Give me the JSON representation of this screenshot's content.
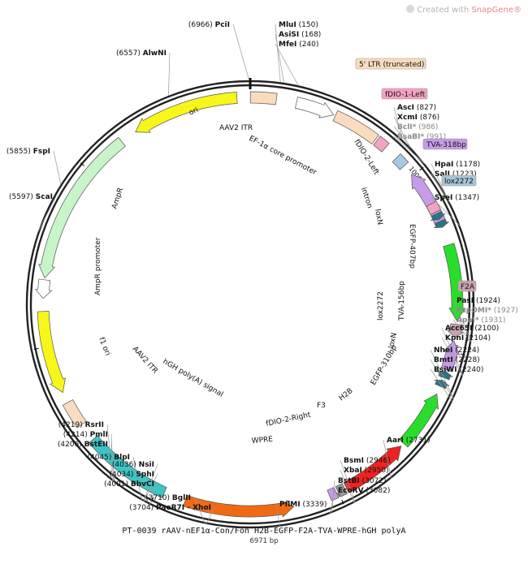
{
  "brand": {
    "prefix": "Created with ",
    "name": "SnapGene®"
  },
  "title": "PT-0039 rAAV-nEF1α-Con/Fon H2B-EGFP-F2A-TVA-WPRE-hGH polyA",
  "subtitle": "6971 bp",
  "total_bp": 6971,
  "ticks": [
    {
      "bp": 1000,
      "label": "1000"
    },
    {
      "bp": 2000,
      "label": "2000"
    },
    {
      "bp": 3000,
      "label": "3000"
    },
    {
      "bp": 4000,
      "label": "4000"
    },
    {
      "bp": 5000,
      "label": "5000"
    },
    {
      "bp": 6000,
      "label": "6000"
    }
  ],
  "features": [
    {
      "id": "aav2-itr-left",
      "label": "AAV2 ITR",
      "start": 1,
      "end": 141,
      "color": "#f9dcbd",
      "dir": 0
    },
    {
      "id": "ef1a-promoter",
      "label": "EF-1α core promoter",
      "start": 250,
      "end": 460,
      "color": "#ffffff",
      "dir": 1
    },
    {
      "id": "5-ltr",
      "label": "5' LTR (truncated)",
      "start": 470,
      "end": 720,
      "color": "#f9dcbd",
      "dir": 0
    },
    {
      "id": "fdio-1-left",
      "label": "fDIO-1-Left",
      "start": 730,
      "end": 790,
      "color": "#f5a1c2",
      "dir": 0
    },
    {
      "id": "fdio-2-left",
      "label": "fDIO-2-Left",
      "start": 870,
      "end": 930,
      "color": "#a5c9e6",
      "dir": 0
    },
    {
      "id": "tva-318bp",
      "label": "TVA-318bp",
      "start": 990,
      "end": 1310,
      "color": "#c69be8",
      "dir": -1
    },
    {
      "id": "intron",
      "label": "intron",
      "start": 1180,
      "end": 1230,
      "color": "#f5a1c2",
      "dir": 0
    },
    {
      "id": "loxn-1",
      "label": "loxN",
      "start": 1240,
      "end": 1275,
      "color": "#2e7480",
      "dir": 1
    },
    {
      "id": "lox2272-1",
      "label": "lox2272",
      "start": 1285,
      "end": 1320,
      "color": "#2e7480",
      "dir": 1
    },
    {
      "id": "egfp-407bp",
      "label": "EGFP-407bp",
      "start": 1420,
      "end": 1830,
      "color": "#2bdd2b",
      "dir": 1
    },
    {
      "id": "f2a",
      "label": "F2A",
      "start": 1850,
      "end": 1920,
      "color": "#c9a3ad",
      "dir": 1
    },
    {
      "id": "tva-156bp",
      "label": "TVA-156bp",
      "start": 1940,
      "end": 2100,
      "color": "#c69be8",
      "dir": -1
    },
    {
      "id": "lox2272-2",
      "label": "lox2272",
      "start": 2110,
      "end": 2145,
      "color": "#2e7480",
      "dir": -1
    },
    {
      "id": "loxn-2",
      "label": "loxN",
      "start": 2160,
      "end": 2195,
      "color": "#2e7480",
      "dir": -1
    },
    {
      "id": "egfp-310bp",
      "label": "EGFP-310bp",
      "start": 2240,
      "end": 2560,
      "color": "#2bdd2b",
      "dir": -1
    },
    {
      "id": "h2b",
      "label": "H2B",
      "start": 2580,
      "end": 2950,
      "color": "#ee2222",
      "dir": -1
    },
    {
      "id": "f3",
      "label": "F3",
      "start": 2960,
      "end": 3000,
      "color": "#999999",
      "dir": 0
    },
    {
      "id": "fdio-2-right",
      "label": "fDIO-2-Right",
      "start": 3010,
      "end": 3050,
      "color": "#c69be8",
      "dir": 0
    },
    {
      "id": "wpre",
      "label": "WPRE",
      "start": 3250,
      "end": 3840,
      "color": "#f06a14",
      "dir": -1
    },
    {
      "id": "hgh-polya",
      "label": "hGH poly(A) signal",
      "start": 3960,
      "end": 4440,
      "color": "#3ec4c4",
      "dir": 0
    },
    {
      "id": "aav2-itr-right",
      "label": "AAV2 ITR",
      "start": 4540,
      "end": 4680,
      "color": "#f9dcbd",
      "dir": 0
    },
    {
      "id": "f1-ori",
      "label": "f1 ori",
      "start": 4740,
      "end": 5190,
      "color": "#f6f61a",
      "dir": -1
    },
    {
      "id": "ampr-promoter",
      "label": "AmpR promoter",
      "start": 5260,
      "end": 5360,
      "color": "#ffffff",
      "dir": -1
    },
    {
      "id": "ampr",
      "label": "AmpR",
      "start": 5370,
      "end": 6230,
      "color": "#c7f5c7",
      "dir": -1
    },
    {
      "id": "ori",
      "label": "ori",
      "start": 6320,
      "end": 6900,
      "color": "#f6f61a",
      "dir": -1
    }
  ],
  "sites": [
    {
      "name": "PciI",
      "pos": "(6966)"
    },
    {
      "name": "MluI",
      "pos": "(150)"
    },
    {
      "name": "AsiSI",
      "pos": "(168)"
    },
    {
      "name": "MfeI",
      "pos": "(240)"
    },
    {
      "name": "AscI",
      "pos": "(827)"
    },
    {
      "name": "XcmI",
      "pos": "(876)"
    },
    {
      "name": "BclI*",
      "pos": "(986)",
      "gray": true
    },
    {
      "name": "BsaBI*",
      "pos": "(991)",
      "gray": true
    },
    {
      "name": "HpaI",
      "pos": "(1178)"
    },
    {
      "name": "SalI",
      "pos": "(1223)"
    },
    {
      "name": "SpeI",
      "pos": "(1347)"
    },
    {
      "name": "PasI",
      "pos": "(1924)"
    },
    {
      "name": "PspOMI*",
      "pos": "(1927)",
      "gray": true
    },
    {
      "name": "ApaI*",
      "pos": "(1931)",
      "gray": true
    },
    {
      "name": "Acc65I",
      "pos": "(2100)"
    },
    {
      "name": "KpnI",
      "pos": "(2104)"
    },
    {
      "name": "NheI",
      "pos": "(2224)"
    },
    {
      "name": "BmtI",
      "pos": "(2228)"
    },
    {
      "name": "BsiWI",
      "pos": "(2240)"
    },
    {
      "name": "AarI",
      "pos": "(2731)"
    },
    {
      "name": "BsmI",
      "pos": "(2946)"
    },
    {
      "name": "XbaI",
      "pos": "(2950)"
    },
    {
      "name": "BstBI",
      "pos": "(3072)"
    },
    {
      "name": "EcoRV",
      "pos": "(3082)"
    },
    {
      "name": "PflMI",
      "pos": "(3339)"
    },
    {
      "name": "BglII",
      "pos": "(3710)"
    },
    {
      "name": "PaeR7I - XhoI",
      "pos": "(3704)"
    },
    {
      "name": "BbvCI",
      "pos": "(4001)"
    },
    {
      "name": "SphI",
      "pos": "(4034)"
    },
    {
      "name": "NsiI",
      "pos": "(4036)"
    },
    {
      "name": "BlpI",
      "pos": "(4045)"
    },
    {
      "name": "BstEII",
      "pos": "(4206)"
    },
    {
      "name": "PmlI",
      "pos": "(4214)"
    },
    {
      "name": "RsrII",
      "pos": "(4219)"
    },
    {
      "name": "ScaI",
      "pos": "(5597)"
    },
    {
      "name": "FspI",
      "pos": "(5855)"
    },
    {
      "name": "AlwNI",
      "pos": "(6557)"
    }
  ]
}
